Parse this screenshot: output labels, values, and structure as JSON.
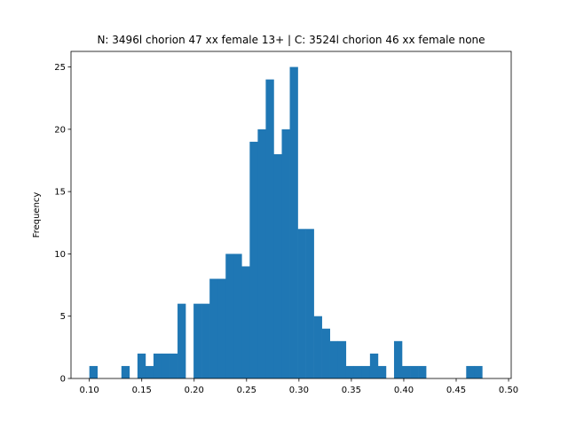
{
  "chart_data": {
    "type": "bar",
    "title": "N: 3496l chorion 47 xx female 13+ | C: 3524l chorion 46 xx female none",
    "xlabel": "",
    "ylabel": "Frequency",
    "xlim": [
      0.0825,
      0.5025
    ],
    "ylim": [
      0,
      26.25
    ],
    "bar_color": "#1f77b4",
    "x_ticks": [
      0.1,
      0.15,
      0.2,
      0.25,
      0.3,
      0.35,
      0.4,
      0.45,
      0.5
    ],
    "x_tick_labels": [
      "0.10",
      "0.15",
      "0.20",
      "0.25",
      "0.30",
      "0.35",
      "0.40",
      "0.45",
      "0.50"
    ],
    "y_ticks": [
      0,
      5,
      10,
      15,
      20,
      25
    ],
    "y_tick_labels": [
      "0",
      "5",
      "10",
      "15",
      "20",
      "25"
    ],
    "bin_start": 0.1,
    "bin_width": 0.00765,
    "values": [
      1,
      0,
      0,
      0,
      1,
      0,
      2,
      1,
      2,
      2,
      2,
      6,
      0,
      6,
      6,
      8,
      8,
      10,
      10,
      9,
      19,
      20,
      24,
      18,
      20,
      25,
      12,
      12,
      5,
      4,
      3,
      3,
      1,
      1,
      1,
      2,
      1,
      0,
      3,
      1,
      1,
      1,
      0,
      0,
      0,
      0,
      0,
      1,
      1
    ]
  }
}
